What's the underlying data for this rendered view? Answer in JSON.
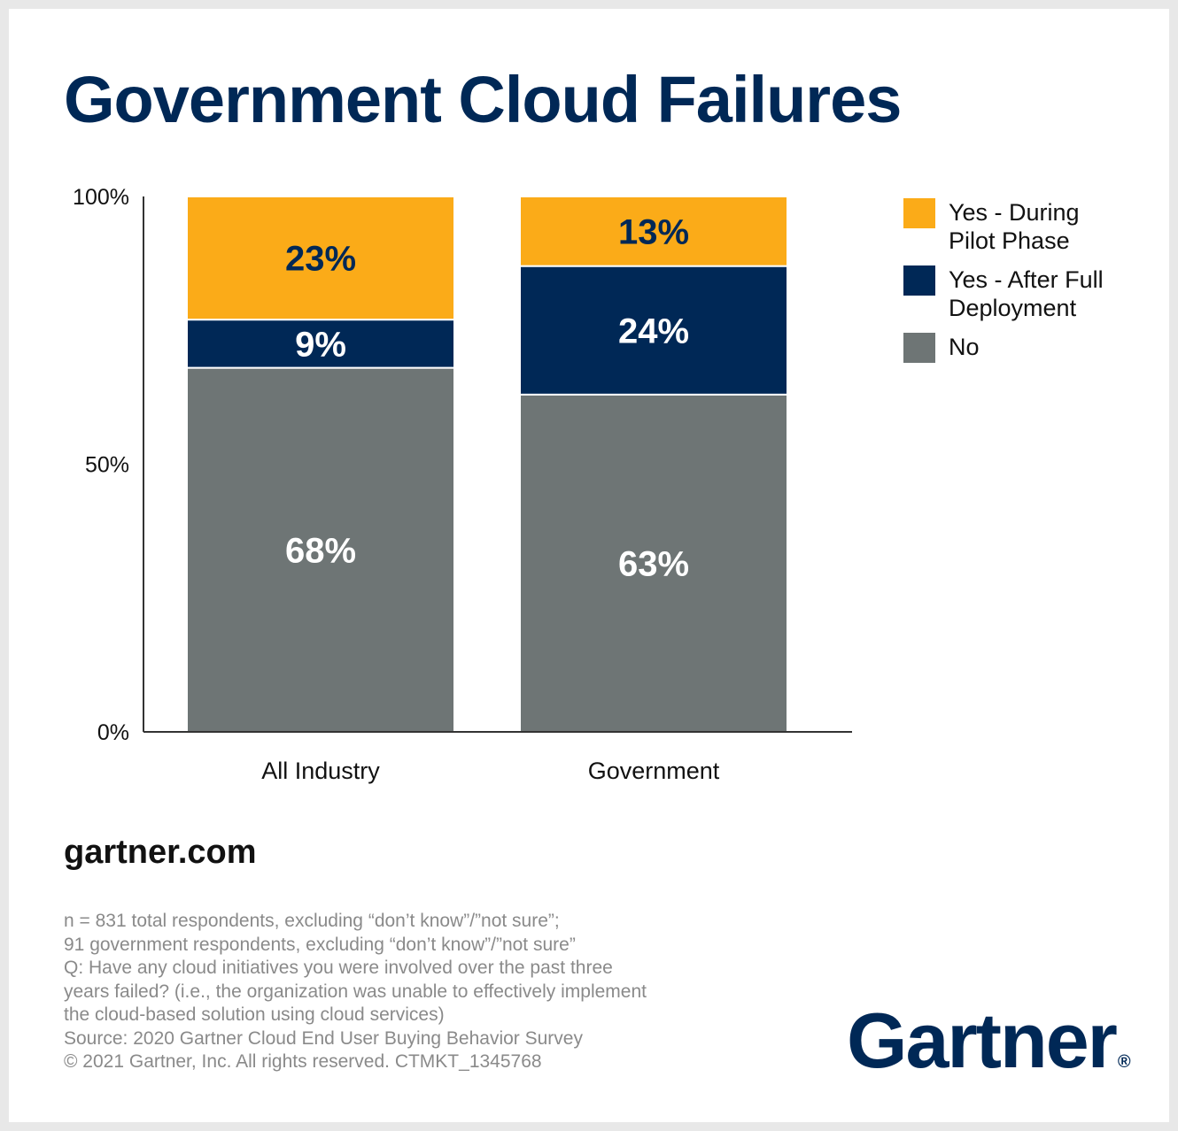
{
  "title": "Government Cloud Failures",
  "chart_data": {
    "type": "bar",
    "stacked": true,
    "categories": [
      "All Industry",
      "Government"
    ],
    "series": [
      {
        "name": "No",
        "values": [
          68,
          63
        ],
        "labels": [
          "68%",
          "63%"
        ],
        "color": "#6e7575",
        "label_color": "#ffffff"
      },
      {
        "name": "Yes - After Full Deployment",
        "values": [
          9,
          24
        ],
        "labels": [
          "9%",
          "24%"
        ],
        "color": "#002856",
        "label_color": "#ffffff"
      },
      {
        "name": "Yes - During Pilot Phase",
        "values": [
          23,
          13
        ],
        "labels": [
          "23%",
          "13%"
        ],
        "color": "#fbab18",
        "label_color": "#002856"
      }
    ],
    "ylim": [
      0,
      100
    ],
    "yticks": [
      0,
      50,
      100
    ],
    "ytick_labels": [
      "0%",
      "50%",
      "100%"
    ],
    "grid": false,
    "legend_position": "right"
  },
  "legend": [
    {
      "label_lines": [
        "Yes - During",
        "Pilot Phase"
      ],
      "color": "#fbab18"
    },
    {
      "label_lines": [
        "Yes - After Full",
        "Deployment"
      ],
      "color": "#002856"
    },
    {
      "label_lines": [
        "No"
      ],
      "color": "#6e7575"
    }
  ],
  "site": "gartner.com",
  "footnotes": [
    "n = 831 total respondents, excluding “don’t know”/”not sure”;",
    "91 government respondents, excluding “don’t know”/”not sure”",
    "Q: Have any cloud initiatives you were involved over the past three",
    "years failed? (i.e., the organization was unable to effectively implement",
    "the cloud-based solution using cloud services)",
    "Source: 2020 Gartner Cloud End User Buying Behavior Survey",
    "© 2021 Gartner, Inc. All rights reserved. CTMKT_1345768"
  ],
  "logo": {
    "text": "Gartner",
    "mark": "®"
  }
}
